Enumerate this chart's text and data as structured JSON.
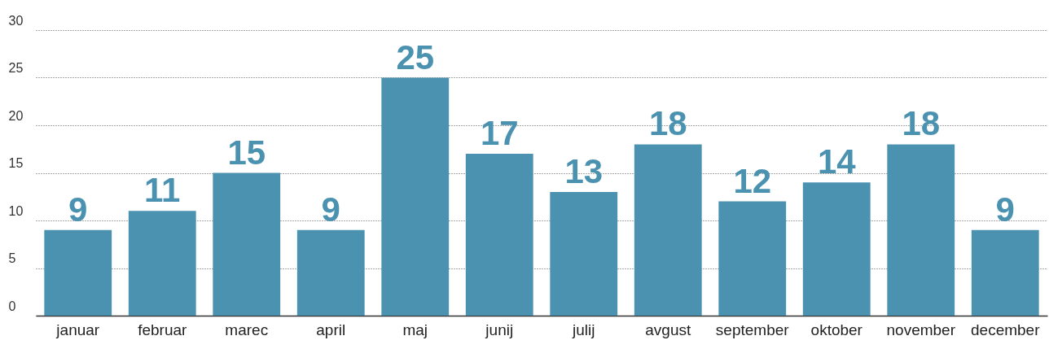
{
  "chart_data": {
    "type": "bar",
    "categories": [
      "januar",
      "februar",
      "marec",
      "april",
      "maj",
      "junij",
      "julij",
      "avgust",
      "september",
      "oktober",
      "november",
      "december"
    ],
    "values": [
      9,
      11,
      15,
      9,
      25,
      17,
      13,
      18,
      12,
      14,
      18,
      9
    ],
    "color": "#4a92b0",
    "ylim": [
      0,
      30
    ],
    "yticks": [
      0,
      5,
      10,
      15,
      20,
      25,
      30
    ],
    "grid": "y",
    "data_labels": true
  }
}
